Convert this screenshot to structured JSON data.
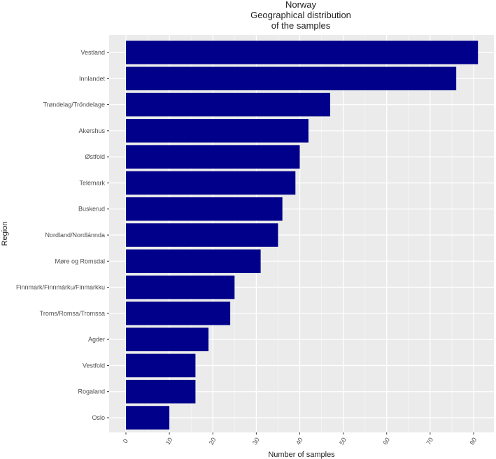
{
  "chart_data": {
    "type": "bar",
    "orientation": "horizontal",
    "title": [
      "Norway",
      "Geographical distribution",
      "of the samples"
    ],
    "xlabel": "Number of samples",
    "ylabel": "Region",
    "xlim": [
      0,
      83
    ],
    "xticks": [
      0,
      10,
      20,
      30,
      40,
      50,
      60,
      70,
      80
    ],
    "grid": true,
    "bar_color": "#00008b",
    "panel_color": "#ebebeb",
    "categories": [
      "Vestland",
      "Innlandet",
      "Trøndelag/Tröndelage",
      "Akershus",
      "Østfold",
      "Telemark",
      "Buskerud",
      "Nordland/Nordlánnda",
      "Møre og Romsdal",
      "Finnmark/Finnmárku/Finmarkku",
      "Troms/Romsa/Tromssa",
      "Agder",
      "Vestfold",
      "Rogaland",
      "Oslo"
    ],
    "values": [
      81,
      76,
      47,
      42,
      40,
      39,
      36,
      35,
      31,
      25,
      24,
      19,
      16,
      16,
      10
    ]
  }
}
